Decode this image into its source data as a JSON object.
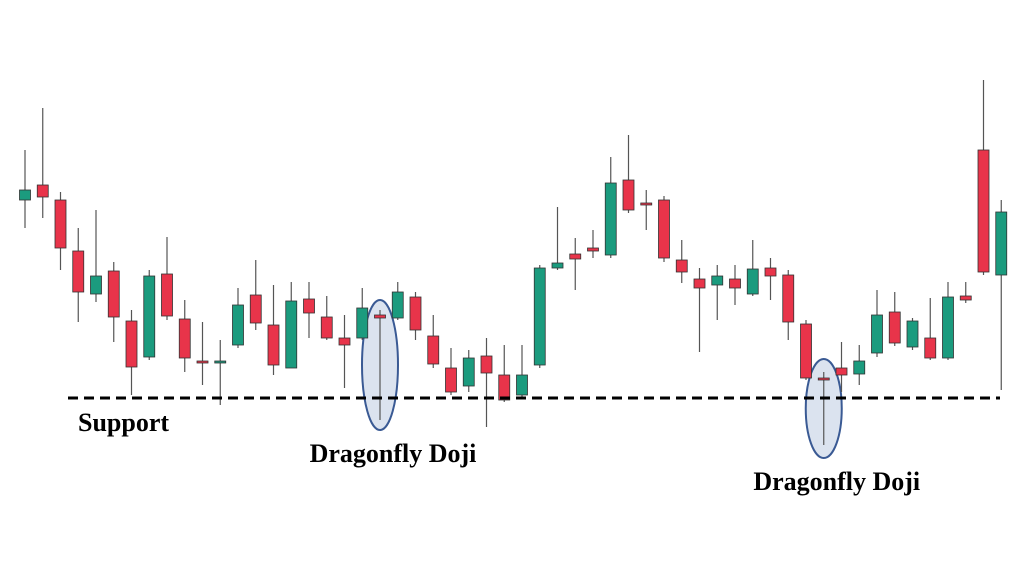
{
  "chart_data": {
    "type": "candlestick",
    "ylim": [
      0,
      576
    ],
    "up_color": "#1b9b7e",
    "down_color": "#e8344a",
    "open": [
      376,
      391,
      376,
      325,
      282,
      305,
      255,
      219,
      302,
      257,
      215,
      213,
      231,
      281,
      251,
      208,
      277,
      259,
      238,
      238,
      261,
      258,
      279,
      240,
      208,
      190,
      220,
      201,
      181,
      211,
      308,
      322,
      328,
      321,
      396,
      373,
      376,
      316,
      297,
      291,
      297,
      282,
      308,
      301,
      252,
      198,
      208,
      202,
      223,
      264,
      229,
      238,
      218,
      280,
      426,
      301
    ],
    "high": [
      426,
      468,
      384,
      348,
      366,
      314,
      266,
      306,
      339,
      276,
      254,
      236,
      288,
      316,
      291,
      294,
      294,
      280,
      261,
      288,
      266,
      294,
      284,
      261,
      228,
      226,
      238,
      231,
      231,
      311,
      369,
      338,
      346,
      419,
      441,
      386,
      380,
      336,
      308,
      311,
      311,
      336,
      318,
      306,
      256,
      204,
      234,
      231,
      286,
      284,
      258,
      278,
      294,
      294,
      496,
      376
    ],
    "low": [
      348,
      358,
      306,
      254,
      274,
      234,
      181,
      216,
      256,
      204,
      191,
      171,
      228,
      246,
      201,
      208,
      238,
      236,
      188,
      236,
      156,
      256,
      236,
      208,
      181,
      184,
      149,
      174,
      178,
      208,
      306,
      286,
      318,
      318,
      363,
      346,
      314,
      293,
      224,
      256,
      271,
      280,
      276,
      236,
      196,
      131,
      184,
      191,
      219,
      230,
      226,
      216,
      216,
      273,
      301,
      186
    ],
    "close": [
      386,
      379,
      328,
      284,
      300,
      259,
      209,
      300,
      260,
      218,
      215,
      215,
      271,
      253,
      211,
      275,
      263,
      238,
      231,
      268,
      258,
      284,
      246,
      212,
      184,
      218,
      203,
      176,
      201,
      308,
      313,
      317,
      325,
      393,
      366,
      373,
      318,
      304,
      288,
      300,
      288,
      307,
      300,
      254,
      198,
      198,
      201,
      215,
      261,
      233,
      255,
      218,
      279,
      276,
      304,
      364
    ],
    "support": {
      "value": 178,
      "label": "Support"
    },
    "annotations": [
      {
        "text": "Dragonfly Doji",
        "candle": 20
      },
      {
        "text": "Dragonfly Doji",
        "candle": 45
      }
    ]
  }
}
